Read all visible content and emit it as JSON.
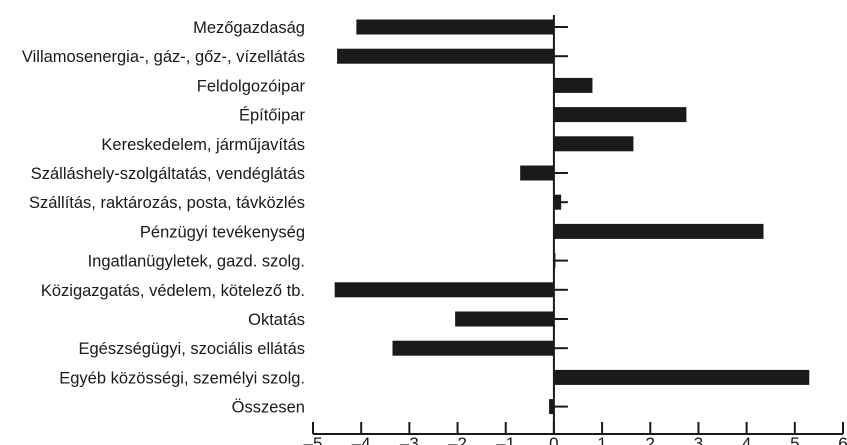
{
  "chart_data": {
    "type": "bar",
    "orientation": "horizontal",
    "title": "",
    "xlabel": "",
    "ylabel": "",
    "xlim": [
      -5,
      6
    ],
    "xticks": [
      -5,
      -4,
      -3,
      -2,
      -1,
      0,
      1,
      2,
      3,
      4,
      5,
      6
    ],
    "xtick_labels": [
      "–5",
      "–4",
      "–3",
      "–2",
      "–1",
      "0",
      "1",
      "2",
      "3",
      "4",
      "5",
      "6"
    ],
    "grid": false,
    "bar_color": "#1a1a1a",
    "categories": [
      "Mezőgazdaság",
      "Villamosenergia-, gáz-, gőz-, vízellátás",
      "Feldolgozóipar",
      "Építőipar",
      "Kereskedelem, járműjavítás",
      "Szálláshely-szolgáltatás, vendéglátás",
      "Szállítás, raktározás, posta, távközlés",
      "Pénzügyi tevékenység",
      "Ingatlanügyletek, gazd. szolg.",
      "Közigazgatás, védelem, kötelező tb.",
      "Oktatás",
      "Egészségügyi, szociális ellátás",
      "Egyéb közösségi, személyi szolg.",
      "Összesen"
    ],
    "values": [
      -4.1,
      -4.5,
      0.8,
      2.75,
      1.65,
      -0.7,
      0.15,
      4.35,
      0.02,
      -4.55,
      -2.05,
      -3.35,
      5.3,
      -0.1
    ]
  }
}
